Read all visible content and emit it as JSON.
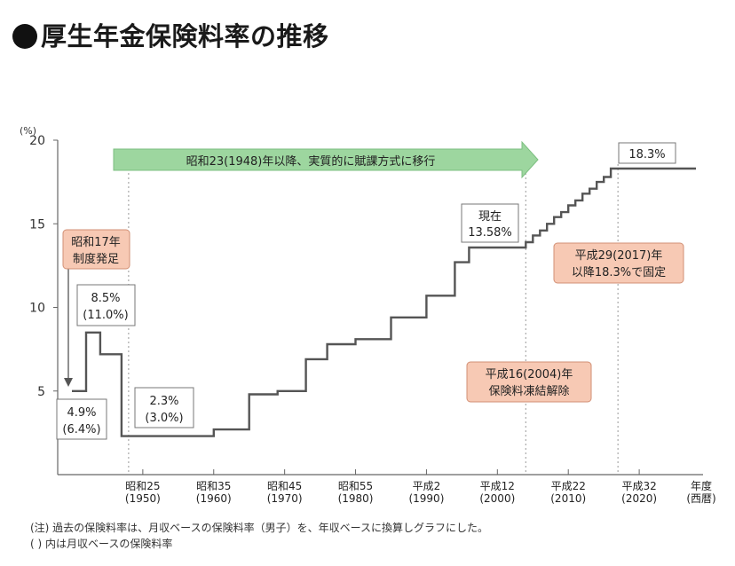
{
  "title": "厚生年金保険料率の推移",
  "chart_data": {
    "type": "line",
    "step": true,
    "y_unit": "(%)",
    "xlabel": "年度\n(西暦)",
    "ylim": [
      0,
      20
    ],
    "xlim": [
      1938,
      2029
    ],
    "yticks": [
      5,
      10,
      15,
      20
    ],
    "xticks": [
      {
        "value": 1950,
        "label1": "昭和25",
        "label2": "(1950)"
      },
      {
        "value": 1960,
        "label1": "昭和35",
        "label2": "(1960)"
      },
      {
        "value": 1970,
        "label1": "昭和45",
        "label2": "(1970)"
      },
      {
        "value": 1980,
        "label1": "昭和55",
        "label2": "(1980)"
      },
      {
        "value": 1990,
        "label1": "平成2",
        "label2": "(1990)"
      },
      {
        "value": 2000,
        "label1": "平成12",
        "label2": "(2000)"
      },
      {
        "value": 2010,
        "label1": "平成22",
        "label2": "(2010)"
      },
      {
        "value": 2020,
        "label1": "平成32",
        "label2": "(2020)"
      }
    ],
    "series": [
      {
        "color": "#555555",
        "x": [
          1940,
          1942,
          1942,
          1944,
          1944,
          1947,
          1947,
          1948,
          1948,
          1960,
          1960,
          1965,
          1965,
          1969,
          1969,
          1973,
          1973,
          1976,
          1976,
          1980,
          1980,
          1985,
          1985,
          1990,
          1990,
          1994,
          1994,
          1996,
          1996,
          2004,
          2004,
          2005,
          2005,
          2006,
          2006,
          2007,
          2007,
          2008,
          2008,
          2009,
          2009,
          2010,
          2010,
          2011,
          2011,
          2012,
          2012,
          2013,
          2013,
          2014,
          2014,
          2015,
          2015,
          2016,
          2016,
          2017,
          2017,
          2028
        ],
        "y": [
          5.0,
          5.0,
          8.5,
          8.5,
          7.2,
          7.2,
          2.3,
          2.3,
          2.3,
          2.3,
          2.7,
          2.7,
          4.8,
          4.8,
          5.0,
          5.0,
          6.9,
          6.9,
          7.8,
          7.8,
          8.1,
          8.1,
          9.4,
          9.4,
          10.7,
          10.7,
          12.7,
          12.7,
          13.58,
          13.58,
          13.9,
          13.9,
          14.3,
          14.3,
          14.6,
          14.6,
          15.0,
          15.0,
          15.4,
          15.4,
          15.7,
          15.7,
          16.1,
          16.1,
          16.4,
          16.4,
          16.8,
          16.8,
          17.1,
          17.1,
          17.5,
          17.5,
          17.8,
          17.8,
          18.3,
          18.3,
          18.3,
          18.3
        ]
      }
    ],
    "dashed_lines_x": [
      1948,
      2004,
      2017
    ],
    "annotations": {
      "arrow_text": "昭和23(1948)年以降、実質的に賦課方式に移行",
      "start_box": [
        "昭和17年",
        "制度発足"
      ],
      "v1948": [
        "8.5%",
        "(11.0%)"
      ],
      "v1942": [
        "4.9%",
        "(6.4%)"
      ],
      "v1954": [
        "2.3%",
        "(3.0%)"
      ],
      "current": [
        "現在",
        "13.58%"
      ],
      "final": "18.3%",
      "fixed_box": [
        "平成29(2017)年",
        "以降18.3%で固定"
      ],
      "freeze_box": [
        "平成16(2004)年",
        "保険料凍結解除"
      ]
    }
  },
  "notes": [
    "(注) 過去の保険料率は、月収ベースの保険料率（男子）を、年収ベースに換算しグラフにした。",
    "( ) 内は月収ベースの保険料率"
  ]
}
